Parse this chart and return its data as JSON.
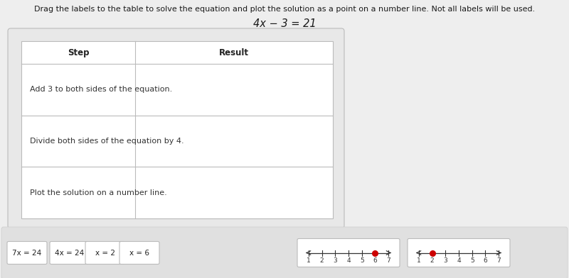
{
  "title_instruction": "Drag the labels to the table to solve the equation and plot the solution as a point on a number line. Not all labels will be used.",
  "equation": "4x − 3 = 21",
  "table_steps": [
    "Add 3 to both sides of the equation.",
    "Divide both sides of the equation by 4.",
    "Plot the solution on a number line."
  ],
  "col_headers": [
    "Step",
    "Result"
  ],
  "labels": [
    "7x = 24",
    "4x = 24",
    "x = 2",
    "x = 6"
  ],
  "number_line1": {
    "start": 1,
    "end": 7,
    "point": 6,
    "point_color": "#cc0000"
  },
  "number_line2": {
    "start": 1,
    "end": 7,
    "point": 2,
    "point_color": "#cc0000"
  },
  "bg_color": "#eeeeee",
  "table_outer_bg": "#e8e8e8",
  "table_bg": "#ffffff",
  "label_box_bg": "#ffffff",
  "border_color": "#bbbbbb",
  "header_fontsize": 8.5,
  "body_fontsize": 8,
  "instruction_fontsize": 8,
  "equation_fontsize": 10.5
}
